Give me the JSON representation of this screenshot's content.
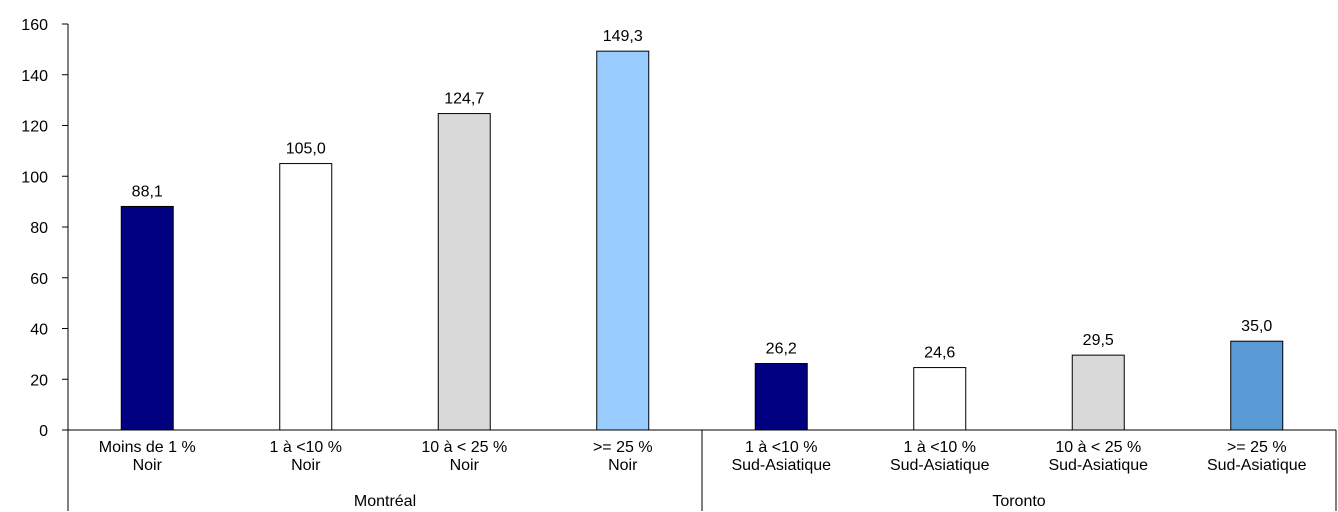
{
  "chart_data": {
    "type": "bar",
    "title": "",
    "xlabel": "",
    "ylabel": "",
    "ylim": [
      0,
      160
    ],
    "yticks": [
      0,
      20,
      40,
      60,
      80,
      100,
      120,
      140,
      160
    ],
    "grid": false,
    "legend": "none",
    "groups": [
      {
        "label": "Montréal",
        "bars": [
          {
            "line1": "Moins de 1 %",
            "line2": "Noir",
            "value": 88.1,
            "value_label": "88,1",
            "color": "#000080"
          },
          {
            "line1": "1 à <10 %",
            "line2": "Noir",
            "value": 105.0,
            "value_label": "105,0",
            "color": "#ffffff"
          },
          {
            "line1": "10 à < 25 %",
            "line2": "Noir",
            "value": 124.7,
            "value_label": "124,7",
            "color": "#d9d9d9"
          },
          {
            "line1": ">= 25 %",
            "line2": "Noir",
            "value": 149.3,
            "value_label": "149,3",
            "color": "#99ccff"
          }
        ]
      },
      {
        "label": "Toronto",
        "bars": [
          {
            "line1": "1 à <10 %",
            "line2": "Sud-Asiatique",
            "value": 26.2,
            "value_label": "26,2",
            "color": "#000080"
          },
          {
            "line1": "1 à <10 %",
            "line2": "Sud-Asiatique",
            "value": 24.6,
            "value_label": "24,6",
            "color": "#ffffff"
          },
          {
            "line1": "10 à < 25 %",
            "line2": "Sud-Asiatique",
            "value": 29.5,
            "value_label": "29,5",
            "color": "#d9d9d9"
          },
          {
            "line1": ">= 25 %",
            "line2": "Sud-Asiatique",
            "value": 35.0,
            "value_label": "35,0",
            "color": "#5b9bd5"
          }
        ]
      }
    ]
  }
}
